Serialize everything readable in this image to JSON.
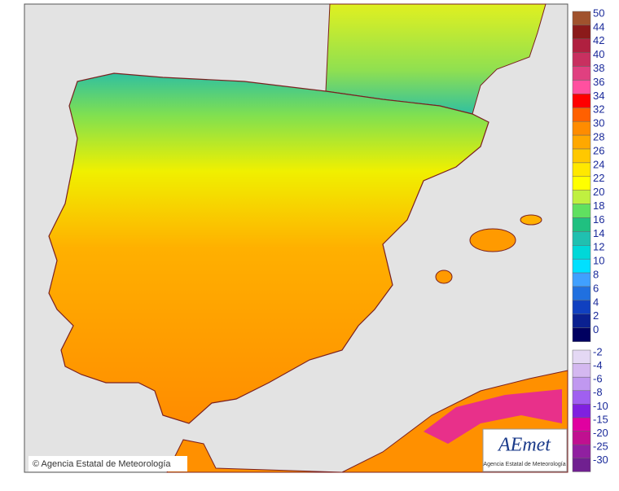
{
  "copyright": "© Agencia Estatal de Meteorología",
  "logo": {
    "name": "AEmet",
    "subtitle": "Agencia Estatal de Meteorología"
  },
  "legend": {
    "upper": [
      {
        "label": "50",
        "color": "#a0522d"
      },
      {
        "label": "44",
        "color": "#8b1a1a"
      },
      {
        "label": "42",
        "color": "#b02040"
      },
      {
        "label": "40",
        "color": "#c83060"
      },
      {
        "label": "38",
        "color": "#e04080"
      },
      {
        "label": "36",
        "color": "#ff50a0"
      },
      {
        "label": "34",
        "color": "#ff0000"
      },
      {
        "label": "32",
        "color": "#ff6000"
      },
      {
        "label": "30",
        "color": "#ff8c00"
      },
      {
        "label": "28",
        "color": "#ffa800"
      },
      {
        "label": "26",
        "color": "#ffc800"
      },
      {
        "label": "24",
        "color": "#ffe800"
      },
      {
        "label": "22",
        "color": "#ffff00"
      },
      {
        "label": "20",
        "color": "#c0f040"
      },
      {
        "label": "18",
        "color": "#60e060"
      },
      {
        "label": "16",
        "color": "#20c080"
      },
      {
        "label": "14",
        "color": "#20c0b0"
      },
      {
        "label": "12",
        "color": "#00d8d8"
      },
      {
        "label": "10",
        "color": "#00e0ff"
      },
      {
        "label": "8",
        "color": "#40a0ff"
      },
      {
        "label": "6",
        "color": "#2070e0"
      },
      {
        "label": "4",
        "color": "#1040c0"
      },
      {
        "label": "2",
        "color": "#0a2090"
      },
      {
        "label": "0",
        "color": "#000060"
      }
    ],
    "lower": [
      {
        "label": "-2",
        "color": "#e4d8f4"
      },
      {
        "label": "-4",
        "color": "#d4b8f0"
      },
      {
        "label": "-6",
        "color": "#c098f0"
      },
      {
        "label": "-8",
        "color": "#a060f0"
      },
      {
        "label": "-10",
        "color": "#8020e0"
      },
      {
        "label": "-15",
        "color": "#e000a0"
      },
      {
        "label": "-20",
        "color": "#c01090"
      },
      {
        "label": "-25",
        "color": "#9020a0"
      },
      {
        "label": "-30",
        "color": "#702090"
      }
    ]
  }
}
